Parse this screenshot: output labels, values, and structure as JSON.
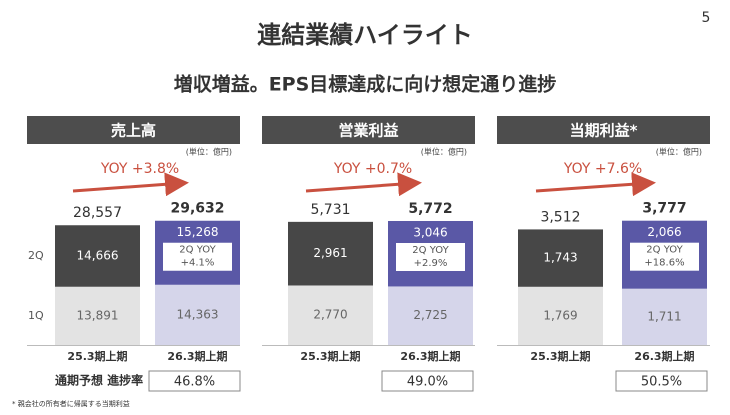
{
  "page_number": "5",
  "title": "連結業績ハイライト",
  "subtitle": "増収増益。EPS目標達成に向け想定通り進捗",
  "progress_label": "通期予想 進捗率",
  "footnote": "* 親会社の所有者に帰属する当期利益",
  "chart_data": [
    {
      "type": "bar",
      "stacked": true,
      "title": "売上高",
      "unit": "(単位：億円)",
      "yoy": "YOY +3.8%",
      "categories": [
        "25.3期上期",
        "26.3期上期"
      ],
      "series": [
        {
          "name": "1Q",
          "colors": [
            "#e3e3e3",
            "#d5d5ea"
          ],
          "values": [
            13891,
            14363
          ],
          "value_labels": [
            "13,891",
            "14,363"
          ]
        },
        {
          "name": "2Q",
          "colors": [
            "#474747",
            "#5a58a6"
          ],
          "values": [
            14666,
            15268
          ],
          "value_labels": [
            "14,666",
            "15,268"
          ]
        }
      ],
      "totals": {
        "values": [
          28557,
          29632
        ],
        "value_labels": [
          "28,557",
          "29,632"
        ]
      },
      "annotation": [
        "2Q YOY",
        "+4.1%"
      ],
      "progress_rate": "46.8%",
      "ylim": [
        0,
        31000
      ]
    },
    {
      "type": "bar",
      "stacked": true,
      "title": "営業利益",
      "unit": "(単位：億円)",
      "yoy": "YOY +0.7%",
      "categories": [
        "25.3期上期",
        "26.3期上期"
      ],
      "series": [
        {
          "name": "1Q",
          "colors": [
            "#e3e3e3",
            "#d5d5ea"
          ],
          "values": [
            2770,
            2725
          ],
          "value_labels": [
            "2,770",
            "2,725"
          ]
        },
        {
          "name": "2Q",
          "colors": [
            "#474747",
            "#5a58a6"
          ],
          "values": [
            2961,
            3046
          ],
          "value_labels": [
            "2,961",
            "3,046"
          ]
        }
      ],
      "totals": {
        "values": [
          5731,
          5772
        ],
        "value_labels": [
          "5,731",
          "5,772"
        ]
      },
      "annotation": [
        "2Q YOY",
        "+2.9%"
      ],
      "progress_rate": "49.0%",
      "ylim": [
        0,
        6050
      ]
    },
    {
      "type": "bar",
      "stacked": true,
      "title": "当期利益*",
      "unit": "(単位：億円)",
      "yoy": "YOY +7.6%",
      "categories": [
        "25.3期上期",
        "26.3期上期"
      ],
      "series": [
        {
          "name": "1Q",
          "colors": [
            "#e3e3e3",
            "#d5d5ea"
          ],
          "values": [
            1769,
            1711
          ],
          "value_labels": [
            "1,769",
            "1,711"
          ]
        },
        {
          "name": "2Q",
          "colors": [
            "#474747",
            "#5a58a6"
          ],
          "values": [
            1743,
            2066
          ],
          "value_labels": [
            "1,743",
            "2,066"
          ]
        }
      ],
      "totals": {
        "values": [
          3512,
          3777
        ],
        "value_labels": [
          "3,512",
          "3,777"
        ]
      },
      "annotation": [
        "2Q YOY",
        "+18.6%"
      ],
      "progress_rate": "50.5%",
      "ylim": [
        0,
        3950
      ]
    }
  ]
}
